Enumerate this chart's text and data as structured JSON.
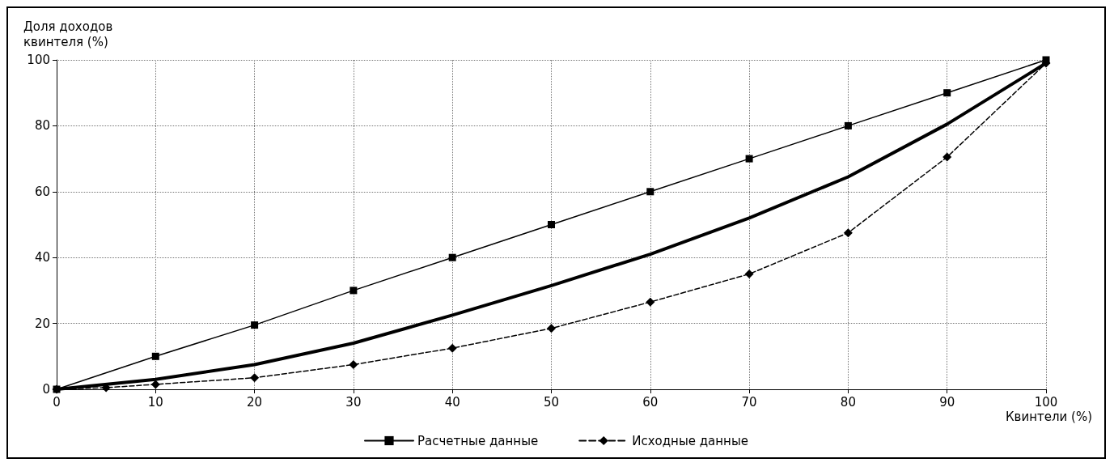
{
  "chart_data": {
    "type": "line",
    "ylabel": "Доля доходов\nквинтеля (%)",
    "xlabel": "Квинтели (%)",
    "xlim": [
      0,
      100
    ],
    "xticks": [
      0,
      10,
      20,
      30,
      40,
      50,
      60,
      70,
      80,
      90,
      100
    ],
    "ylim": [
      0,
      100
    ],
    "yticks": [
      0,
      20,
      40,
      60,
      80,
      100
    ],
    "grid": true,
    "legend": "bottom",
    "series": [
      {
        "name": "Расчетные данные",
        "color": "#000000",
        "marker": "square",
        "line_style": "solid",
        "x": [
          0,
          10,
          20,
          30,
          40,
          50,
          60,
          70,
          80,
          90,
          100
        ],
        "values": [
          0,
          10,
          19.5,
          30,
          40,
          50,
          60,
          70,
          80,
          90,
          100
        ]
      },
      {
        "color": "#000000",
        "marker": "none",
        "line_style": "solid",
        "x": [
          0,
          10,
          20,
          30,
          40,
          50,
          60,
          70,
          80,
          90,
          100
        ],
        "values": [
          0,
          3,
          7.5,
          14,
          22.5,
          31.5,
          41,
          52,
          64.5,
          80.5,
          99
        ]
      },
      {
        "name": "Исходные данные",
        "color": "#000000",
        "marker": "diamond",
        "line_style": "dashed",
        "x": [
          0,
          5,
          10,
          20,
          30,
          40,
          50,
          60,
          70,
          80,
          90,
          100
        ],
        "values": [
          0,
          0.5,
          1.5,
          3.5,
          7.5,
          12.5,
          18.5,
          26.5,
          35,
          47.5,
          70.5,
          99
        ]
      }
    ]
  }
}
